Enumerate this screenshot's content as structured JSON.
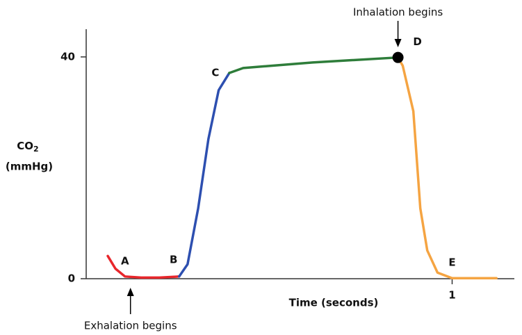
{
  "chart_data": {
    "type": "line",
    "xlabel": "Time (seconds)",
    "ylabel": {
      "text": "CO",
      "subscript": "2",
      "unit": "(mmHg)"
    },
    "xlim": [
      0,
      1.17
    ],
    "xticks": [
      1
    ],
    "ylim": [
      0,
      45
    ],
    "yticks": [
      0,
      40
    ],
    "series": [
      {
        "color": "#e8262b",
        "x": [
          0.059,
          0.08,
          0.106,
          0.15,
          0.2,
          0.254
        ],
        "values": [
          4.1,
          1.8,
          0.4,
          0.2,
          0.2,
          0.4
        ]
      },
      {
        "color": "#2d4fb0",
        "x": [
          0.254,
          0.277,
          0.306,
          0.334,
          0.362,
          0.391
        ],
        "values": [
          0.4,
          2.6,
          12.7,
          25.2,
          34,
          37.1
        ]
      },
      {
        "color": "#2e7d3a",
        "x": [
          0.391,
          0.429,
          0.619,
          0.852
        ],
        "values": [
          37.1,
          38,
          39,
          39.9
        ]
      },
      {
        "color": "#f5a442",
        "x": [
          0.852,
          0.865,
          0.894,
          0.913,
          0.932,
          0.96,
          1.0,
          1.121
        ],
        "values": [
          39.9,
          38.4,
          30.2,
          12.7,
          5.1,
          1.1,
          0.1,
          0.1
        ]
      }
    ],
    "points": [
      {
        "label": "A",
        "x": 0.106,
        "y": 0.4
      },
      {
        "label": "B",
        "x": 0.254,
        "y": 0.4
      },
      {
        "label": "C",
        "x": 0.391,
        "y": 37.1
      },
      {
        "label": "D",
        "x": 0.852,
        "y": 39.9
      },
      {
        "label": "E",
        "x": 1.0,
        "y": 0.1
      }
    ],
    "annotations": [
      {
        "text": "Inhalation begins",
        "x": 0.852
      },
      {
        "text": "Exhalation begins",
        "x": 0.121
      }
    ]
  }
}
